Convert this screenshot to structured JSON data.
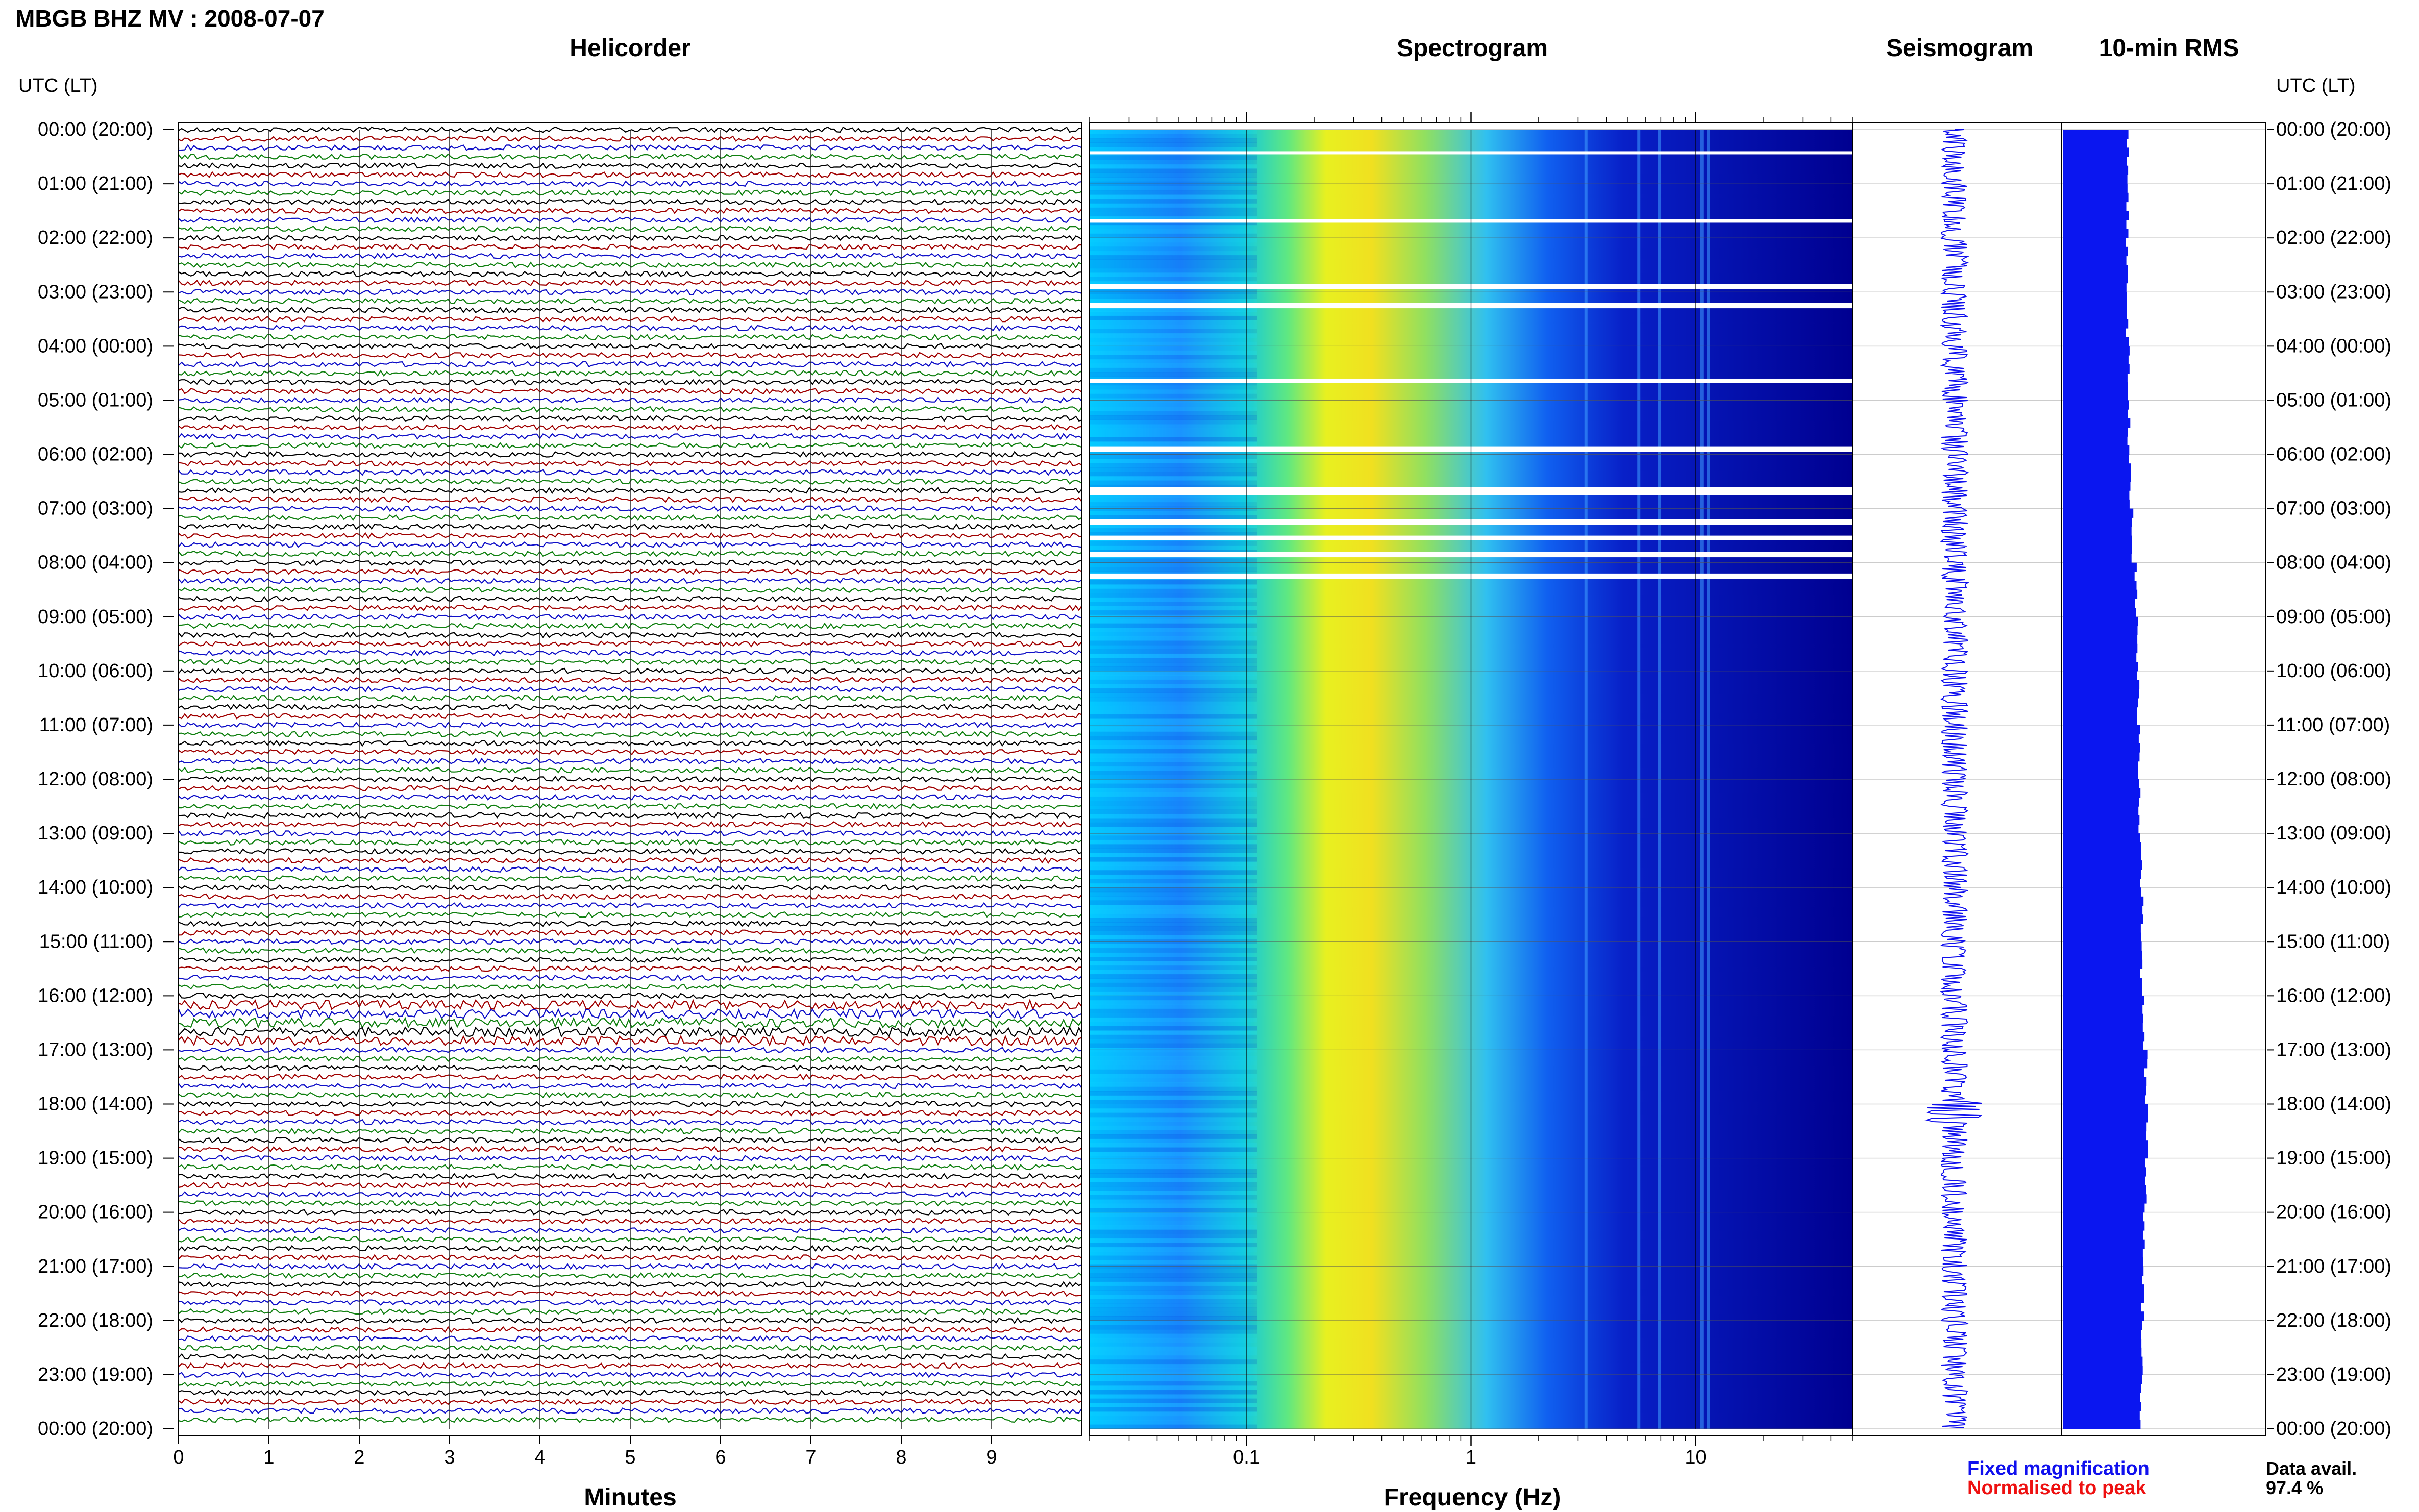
{
  "title": "MBGB BHZ MV : 2008-07-07",
  "time_axis_label": "UTC (LT)",
  "time_labels": [
    "00:00 (20:00)",
    "01:00 (21:00)",
    "02:00 (22:00)",
    "03:00 (23:00)",
    "04:00 (00:00)",
    "05:00 (01:00)",
    "06:00 (02:00)",
    "07:00 (03:00)",
    "08:00 (04:00)",
    "09:00 (05:00)",
    "10:00 (06:00)",
    "11:00 (07:00)",
    "12:00 (08:00)",
    "13:00 (09:00)",
    "14:00 (10:00)",
    "15:00 (11:00)",
    "16:00 (12:00)",
    "17:00 (13:00)",
    "18:00 (14:00)",
    "19:00 (15:00)",
    "20:00 (16:00)",
    "21:00 (17:00)",
    "22:00 (18:00)",
    "23:00 (19:00)",
    "00:00 (20:00)"
  ],
  "panels": {
    "helicorder": "Helicorder",
    "spectrogram": "Spectrogram",
    "seismogram": "Seismogram",
    "rms": "10-min RMS"
  },
  "legend": {
    "fixed": "Fixed magnification",
    "normalised": "Normalised to peak",
    "fixed_color": "#1010ee",
    "normalised_color": "#ee1010"
  },
  "availability": {
    "label": "Data avail.",
    "value": "97.4 %"
  },
  "chart_data": [
    {
      "type": "line",
      "name": "helicorder",
      "title": "Helicorder",
      "xlabel": "Minutes",
      "xticks": [
        "0",
        "1",
        "2",
        "3",
        "4",
        "5",
        "6",
        "7",
        "8",
        "9"
      ],
      "xlim": [
        0,
        10
      ],
      "rows_per_hour": 6,
      "trace_colors": [
        "#000000",
        "#a00000",
        "#1010c8",
        "#108010"
      ],
      "ylabel": "UTC (LT)",
      "ylim_hours": [
        0,
        24
      ]
    },
    {
      "type": "heatmap",
      "name": "spectrogram",
      "title": "Spectrogram",
      "xlabel": "Frequency (Hz)",
      "xscale": "log",
      "xlim": [
        0.02,
        50
      ],
      "xticks": [
        "0.1",
        "1",
        "10"
      ],
      "colormap": [
        "#00008b",
        "#0000ff",
        "#00bfff",
        "#00ffff",
        "#adff2f",
        "#ffff00",
        "#ff8c00",
        "#ff0000"
      ],
      "peak_frequency_band_hz": [
        0.2,
        0.8
      ],
      "data_gap_hours": [
        [
          0.4,
          0.45
        ],
        [
          1.65,
          1.72
        ],
        [
          2.85,
          2.95
        ],
        [
          3.2,
          3.3
        ],
        [
          4.6,
          4.68
        ],
        [
          5.85,
          5.95
        ],
        [
          6.6,
          6.75
        ],
        [
          7.2,
          7.3
        ],
        [
          7.5,
          7.58
        ],
        [
          7.8,
          7.9
        ],
        [
          8.2,
          8.3
        ]
      ]
    },
    {
      "type": "line",
      "name": "seismogram",
      "title": "Seismogram",
      "ylim_hours": [
        0,
        24
      ]
    },
    {
      "type": "bar",
      "name": "rms",
      "title": "10-min RMS",
      "orientation": "horizontal",
      "bin_minutes": 10,
      "hourly_rms_relative": [
        0.85,
        0.84,
        0.83,
        0.84,
        0.85,
        0.86,
        0.87,
        0.9,
        0.95,
        0.97,
        0.98,
        0.99,
        1.0,
        1.02,
        1.03,
        1.02,
        1.05,
        1.08,
        1.1,
        1.08,
        1.06,
        1.04,
        1.03,
        1.02
      ]
    }
  ]
}
